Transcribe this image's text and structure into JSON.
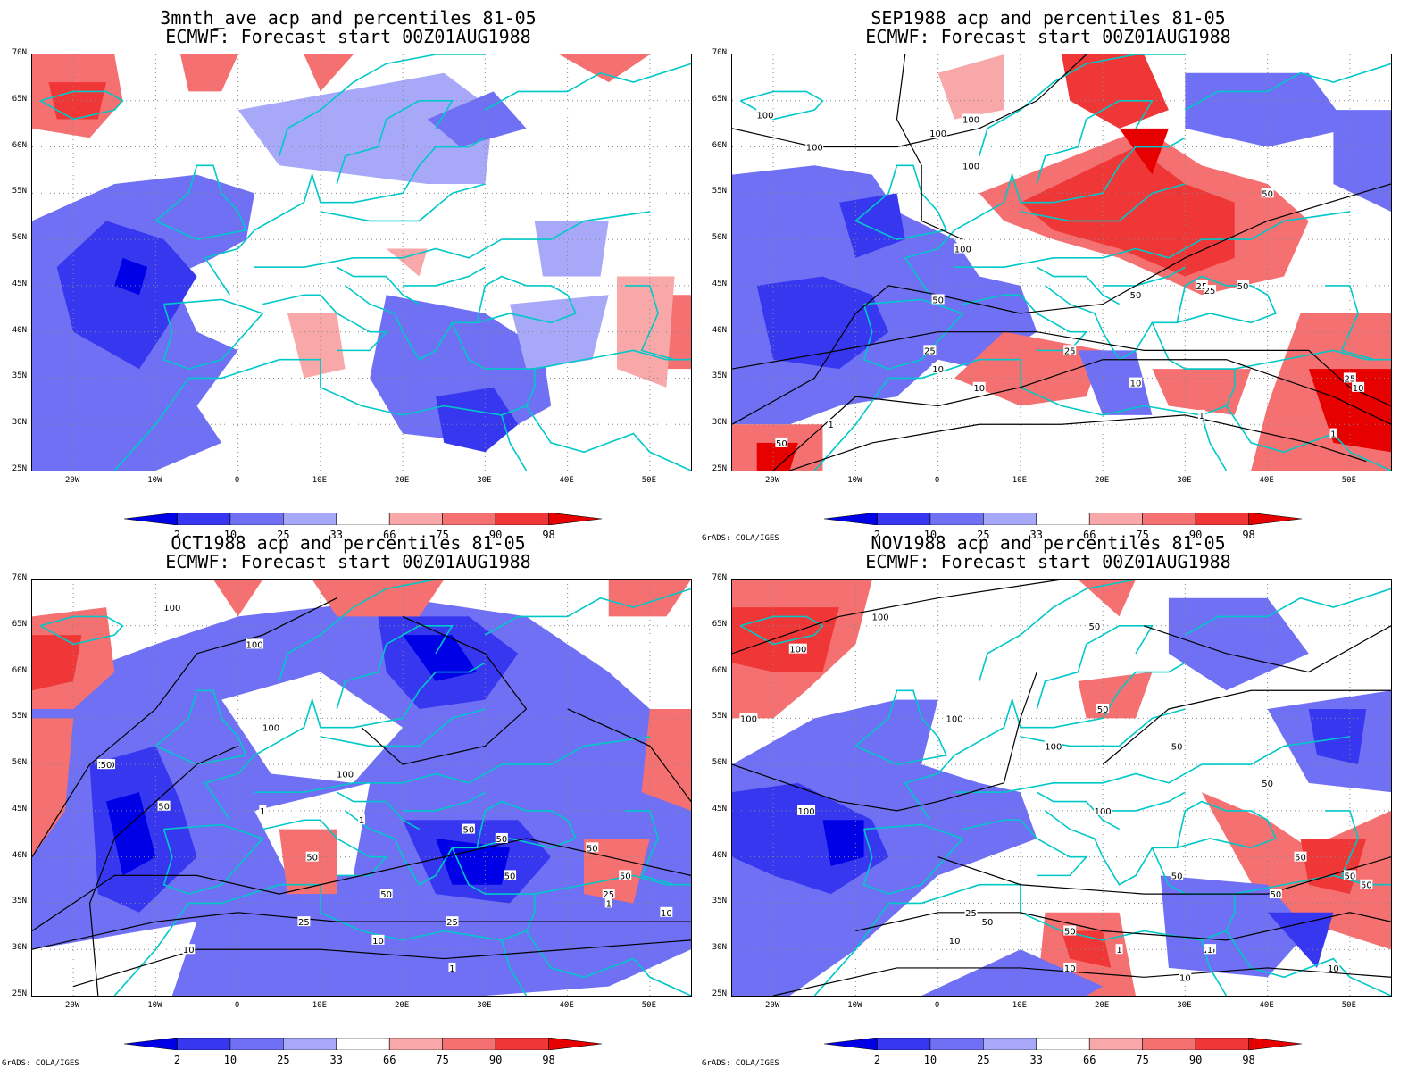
{
  "panels": [
    {
      "line1": "3mnth_ave acp and percentiles 81-05",
      "line2": "ECMWF: Forecast start 00Z01AUG1988",
      "credit": "",
      "contour_labels": []
    },
    {
      "line1": "SEP1988 acp and percentiles 81-05",
      "line2": "ECMWF: Forecast start 00Z01AUG1988",
      "credit": "GrADS: COLA/IGES",
      "contour_labels": [
        "100",
        "100",
        "100",
        "100",
        "100",
        "100",
        "50",
        "50",
        "50",
        "50",
        "25",
        "25",
        "25",
        "25",
        "10",
        "10",
        "10",
        "10",
        "1",
        "1",
        "1",
        "50",
        "25"
      ]
    },
    {
      "line1": "OCT1988 acp and percentiles 81-05",
      "line2": "ECMWF: Forecast start 00Z01AUG1988",
      "credit": "GrADS: COLA/IGES",
      "contour_labels": [
        "100",
        "100",
        "100",
        "100",
        "100",
        "50",
        "50",
        "50",
        "50",
        "50",
        "50",
        "50",
        "50",
        "25",
        "25",
        "25",
        "10",
        "10",
        "10",
        "1",
        "1",
        "1",
        "1",
        "100",
        "50"
      ]
    },
    {
      "line1": "NOV1988 acp and percentiles 81-05",
      "line2": "ECMWF: Forecast start 00Z01AUG1988",
      "credit": "GrADS: COLA/IGES",
      "contour_labels": [
        "100",
        "100",
        "100",
        "100",
        "100",
        "100",
        "100",
        "50",
        "50",
        "50",
        "50",
        "50",
        "50",
        "50",
        "50",
        "50",
        "50",
        "25",
        "25",
        "10",
        "10",
        "10",
        "1",
        "1",
        "10",
        "50"
      ]
    }
  ],
  "lat_labels": [
    "70N",
    "65N",
    "60N",
    "55N",
    "50N",
    "45N",
    "40N",
    "35N",
    "30N",
    "25N"
  ],
  "lon_labels": [
    "20W",
    "10W",
    "0",
    "10E",
    "20E",
    "30E",
    "40E",
    "50E"
  ],
  "colorbar": {
    "labels": [
      "2",
      "10",
      "25",
      "33",
      "66",
      "75",
      "90",
      "98"
    ],
    "colors": [
      "#0000e6",
      "#3737f0",
      "#7070f5",
      "#a8a8f8",
      "#ffffff",
      "#f8a8a8",
      "#f57070",
      "#f03737",
      "#e60000"
    ]
  },
  "colors": {
    "coast": "#00c8c8",
    "contour": "#000000",
    "grid": "#888888"
  }
}
